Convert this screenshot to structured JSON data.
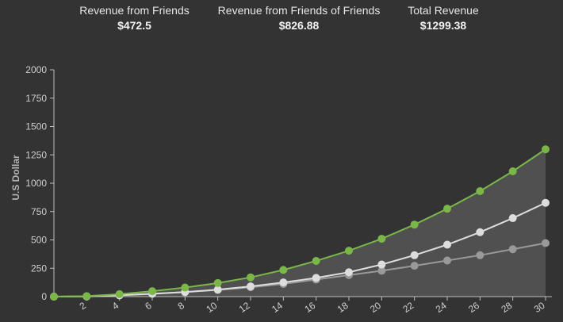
{
  "stats": [
    {
      "label": "Revenue from Friends",
      "value": "$472.5"
    },
    {
      "label": "Revenue from Friends of Friends",
      "value": "$826.88"
    },
    {
      "label": "Total Revenue",
      "value": "$1299.38"
    }
  ],
  "chart_data": {
    "type": "area",
    "title": "",
    "xlabel": "",
    "ylabel": "U.S Dollar",
    "ylim": [
      0,
      2000
    ],
    "yticks": [
      0,
      250,
      500,
      750,
      1000,
      1250,
      1500,
      1750,
      2000
    ],
    "xticks": [
      2,
      4,
      6,
      8,
      10,
      12,
      14,
      16,
      18,
      20,
      22,
      24,
      26,
      28,
      30
    ],
    "xlim": [
      0,
      30
    ],
    "grid": false,
    "x": [
      0,
      2,
      4,
      6,
      8,
      10,
      12,
      14,
      16,
      18,
      20,
      22,
      24,
      26,
      28,
      30
    ],
    "series": [
      {
        "color": "#7ab648",
        "values": [
          0,
          4,
          22,
          48,
          80,
          120,
          170,
          235,
          315,
          405,
          510,
          635,
          775,
          930,
          1105,
          1299
        ]
      },
      {
        "color": "#dddddd",
        "values": [
          0,
          2,
          12,
          25,
          40,
          62,
          90,
          125,
          165,
          215,
          283,
          365,
          458,
          568,
          692,
          827
        ]
      },
      {
        "color": "#999999",
        "values": [
          0,
          2,
          11,
          24,
          40,
          58,
          82,
          112,
          150,
          190,
          228,
          272,
          318,
          365,
          418,
          472
        ]
      }
    ]
  }
}
